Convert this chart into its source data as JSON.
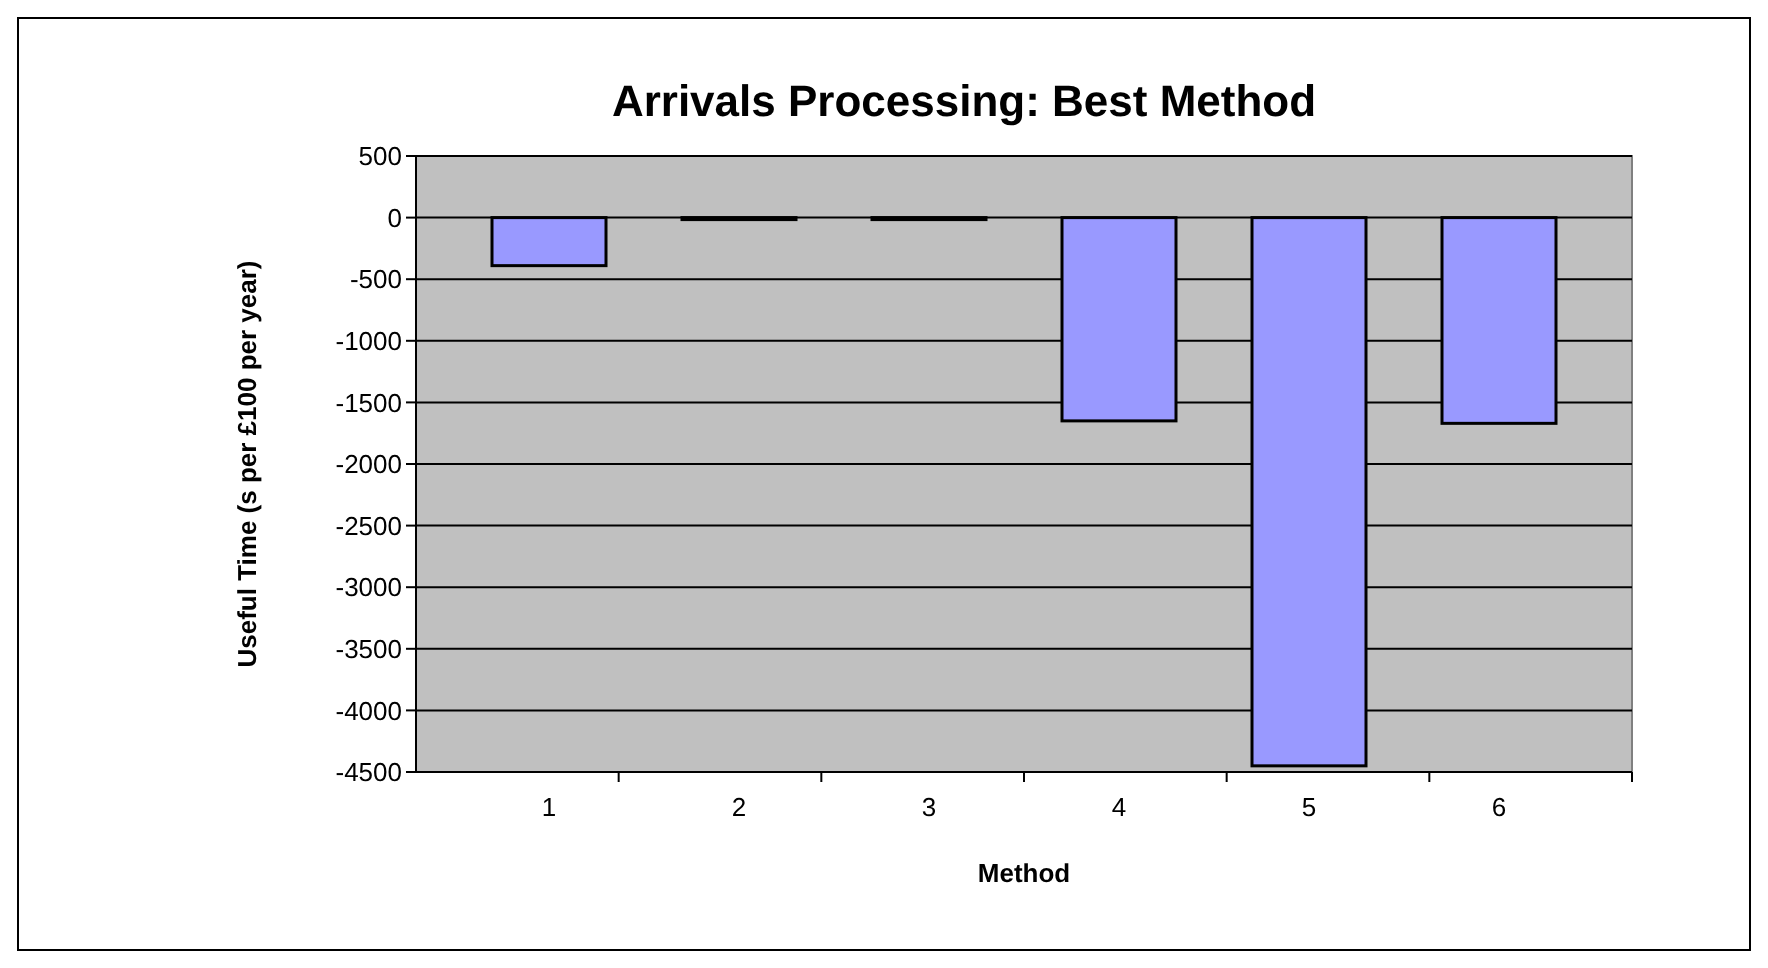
{
  "chart_data": {
    "type": "bar",
    "title": "Arrivals Processing: Best Method",
    "xlabel": "Method",
    "ylabel": "Useful Time (s per £100 per year)",
    "categories": [
      "1",
      "2",
      "3",
      "4",
      "5",
      "6"
    ],
    "values": [
      -390,
      0,
      0,
      -1650,
      -4450,
      -1670
    ],
    "color": "#9999ff",
    "ylim": [
      -4500,
      500
    ],
    "yticks": [
      -4500,
      -4000,
      -3500,
      -3000,
      -2500,
      -2000,
      -1500,
      -1000,
      -500,
      0,
      500
    ],
    "grid": "y"
  }
}
